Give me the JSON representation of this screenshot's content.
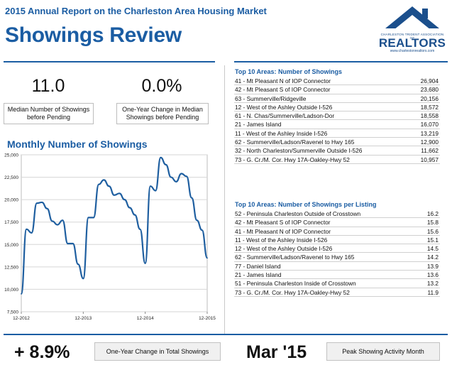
{
  "header": {
    "report_title": "2015 Annual Report on the Charleston Area Housing Market",
    "page_title": "Showings Review"
  },
  "logo": {
    "org_line": "CHARLESTON TRIDENT ASSOCIATION OF",
    "name": "REALTORS",
    "url": "www.charlestonrealtors.com"
  },
  "stats": {
    "median_value": "11.0",
    "median_label_1": "Median Number of Showings",
    "median_label_2": "before Pending",
    "change_value": "0.0%",
    "change_label_1": "One-Year Change in Median",
    "change_label_2": "Showings before Pending"
  },
  "chart_title": "Monthly Number of Showings",
  "chart_data": {
    "type": "line",
    "title": "Monthly Number of Showings",
    "x_tick_labels": [
      "12-2012",
      "12-2013",
      "12-2014",
      "12-2015"
    ],
    "y_ticks": [
      7500,
      10000,
      12500,
      15000,
      17500,
      20000,
      22500,
      25000
    ],
    "y_tick_labels": [
      "7,500",
      "10,000",
      "12,500",
      "15,000",
      "17,500",
      "20,000",
      "22,500",
      "25,000"
    ],
    "ylim": [
      7500,
      25000
    ],
    "grid": true,
    "series": [
      {
        "color": "#1f5fa0",
        "values": [
          9500,
          16700,
          16300,
          19600,
          19700,
          19000,
          17600,
          17200,
          17700,
          15100,
          15100,
          12800,
          11200,
          18000,
          18000,
          21700,
          22200,
          21500,
          20500,
          20700,
          20000,
          19100,
          18300,
          16700,
          12900,
          21500,
          21000,
          24700,
          23900,
          22500,
          22000,
          22900,
          22600,
          20200,
          17700,
          16600,
          13500
        ]
      }
    ]
  },
  "top_showings": {
    "title": "Top 10 Areas: Number of Showings",
    "rows": [
      {
        "area": "41 - Mt Pleasant N of IOP Connector",
        "value": "26,904"
      },
      {
        "area": "42 - Mt Pleasant S of IOP Connector",
        "value": "23,680"
      },
      {
        "area": "63 - Summerville/Ridgeville",
        "value": "20,156"
      },
      {
        "area": "12 - West of the Ashley Outside I-526",
        "value": "18,572"
      },
      {
        "area": "61 - N. Chas/Summerville/Ladson-Dor",
        "value": "18,558"
      },
      {
        "area": "21 - James Island",
        "value": "16,070"
      },
      {
        "area": "11 - West of the Ashley Inside I-526",
        "value": "13,219"
      },
      {
        "area": "62 - Summerville/Ladson/Ravenel to Hwy 165",
        "value": "12,900"
      },
      {
        "area": "32 - North Charleston/Summerville Outside I-526",
        "value": "11,662"
      },
      {
        "area": "73 - G. Cr./M. Cor. Hwy 17A-Oakley-Hwy 52",
        "value": "10,957"
      }
    ]
  },
  "top_per_listing": {
    "title": "Top 10 Areas: Number of Showings per Listing",
    "rows": [
      {
        "area": "52 - Peninsula Charleston Outside of Crosstown",
        "value": "16.2"
      },
      {
        "area": "42 - Mt Pleasant S of IOP Connector",
        "value": "15.8"
      },
      {
        "area": "41 - Mt Pleasant N of IOP Connector",
        "value": "15.6"
      },
      {
        "area": "11 - West of the Ashley Inside I-526",
        "value": "15.1"
      },
      {
        "area": "12 - West of the Ashley Outside I-526",
        "value": "14.5"
      },
      {
        "area": "62 - Summerville/Ladson/Ravenel to Hwy 165",
        "value": "14.2"
      },
      {
        "area": "77 - Daniel Island",
        "value": "13.9"
      },
      {
        "area": "21 - James Island",
        "value": "13.6"
      },
      {
        "area": "51 - Peninsula Charleston Inside of Crosstown",
        "value": "13.2"
      },
      {
        "area": "73 - G. Cr./M. Cor. Hwy 17A-Oakley-Hwy 52",
        "value": "11.9"
      }
    ]
  },
  "footer": {
    "change_value": "+ 8.9%",
    "change_label": "One-Year Change in Total Showings",
    "peak_value": "Mar '15",
    "peak_label": "Peak Showing Activity Month"
  }
}
